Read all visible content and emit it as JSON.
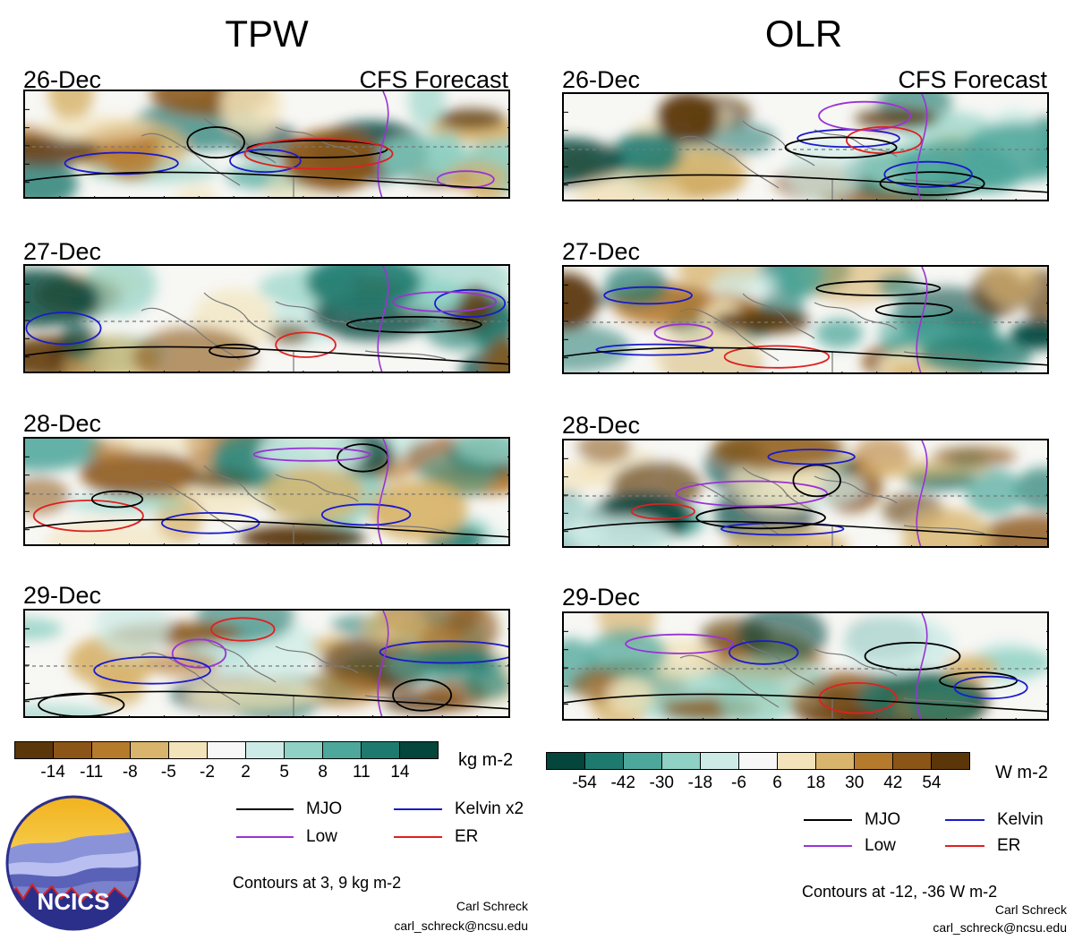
{
  "titles": {
    "tpw": "TPW",
    "olr": "OLR"
  },
  "forecast_label": "CFS Forecast",
  "dates": [
    "26-Dec",
    "27-Dec",
    "28-Dec",
    "29-Dec"
  ],
  "tpw_colorbar": {
    "ticks": [
      "-14",
      "-11",
      "-8",
      "-5",
      "-2",
      "2",
      "5",
      "8",
      "11",
      "14"
    ],
    "unit": "kg m-2",
    "colors": [
      "#5a3609",
      "#8a5517",
      "#b67a2d",
      "#d8b46c",
      "#f2e3bb",
      "#f7f7f7",
      "#cdebe6",
      "#8fd1c4",
      "#4ea79b",
      "#1e7a6f",
      "#04453c"
    ]
  },
  "olr_colorbar": {
    "ticks": [
      "-54",
      "-42",
      "-30",
      "-18",
      "-6",
      "6",
      "18",
      "30",
      "42",
      "54"
    ],
    "unit": "W m-2",
    "colors": [
      "#04453c",
      "#1e7a6f",
      "#4ea79b",
      "#8fd1c4",
      "#cdebe6",
      "#f7f7f7",
      "#f2e3bb",
      "#d8b46c",
      "#b67a2d",
      "#8a5517",
      "#5a3609"
    ]
  },
  "tpw_legend": [
    {
      "label": "MJO",
      "color": "#000000"
    },
    {
      "label": "Kelvin x2",
      "color": "#1a1acc"
    },
    {
      "label": "Low",
      "color": "#9a33d6"
    },
    {
      "label": "ER",
      "color": "#e02020"
    }
  ],
  "olr_legend": [
    {
      "label": "MJO",
      "color": "#000000"
    },
    {
      "label": "Kelvin",
      "color": "#1a1acc"
    },
    {
      "label": "Low",
      "color": "#9a33d6"
    },
    {
      "label": "ER",
      "color": "#e02020"
    }
  ],
  "tpw_contours_note": "Contours at 3, 9 kg m-2",
  "olr_contours_note": "Contours at -12, -36 W m-2",
  "credit": {
    "name": "Carl Schreck",
    "email": "carl_schreck@ncsu.edu"
  },
  "logo_text": "NCICS"
}
